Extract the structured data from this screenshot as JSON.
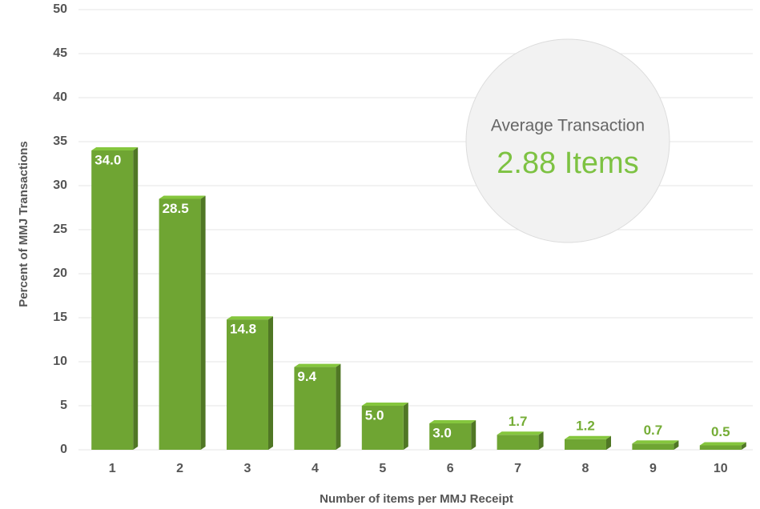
{
  "chart_data": {
    "type": "bar",
    "categories": [
      "1",
      "2",
      "3",
      "4",
      "5",
      "6",
      "7",
      "8",
      "9",
      "10"
    ],
    "values": [
      34.0,
      28.5,
      14.8,
      9.4,
      5.0,
      3.0,
      1.7,
      1.2,
      0.7,
      0.5
    ],
    "value_labels": [
      "34.0",
      "28.5",
      "14.8",
      "9.4",
      "5.0",
      "3.0",
      "1.7",
      "1.2",
      "0.7",
      "0.5"
    ],
    "color": "#6fa533",
    "xlabel": "Number of items per MMJ Receipt",
    "ylabel": "Percent of MMJ Transactions",
    "ylim": [
      0,
      50
    ],
    "yticks": [
      0,
      5,
      10,
      15,
      20,
      25,
      30,
      35,
      40,
      45,
      50
    ],
    "grid": true,
    "annotations": [
      "Average Transaction",
      "2.88 Items"
    ]
  }
}
